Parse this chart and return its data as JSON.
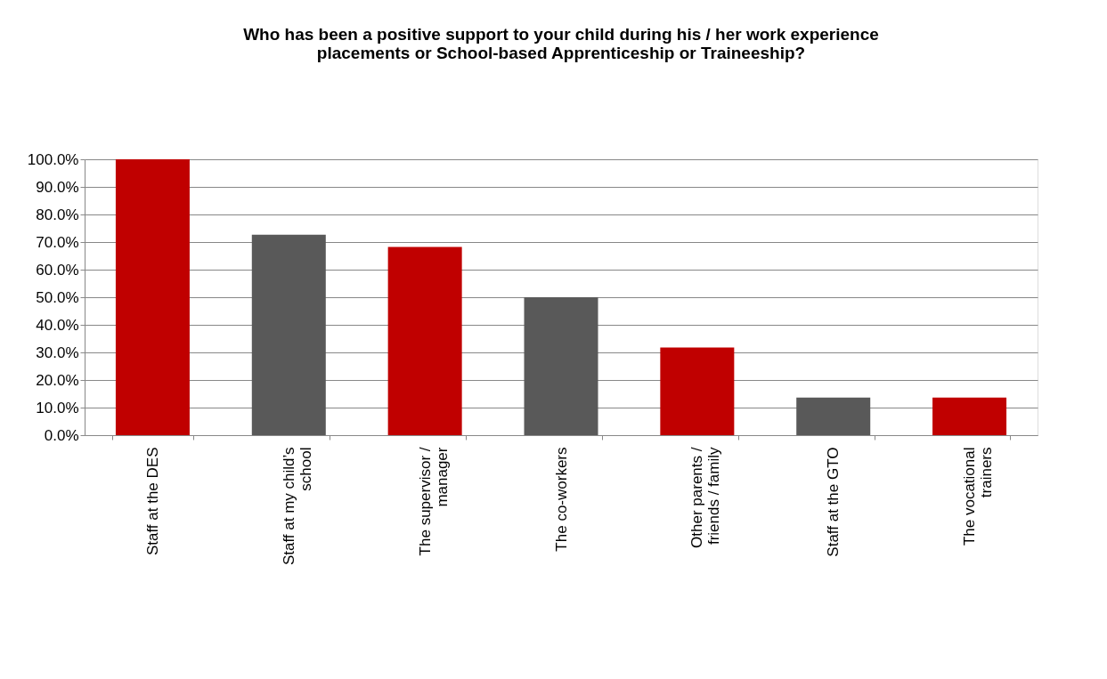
{
  "chart_data": {
    "type": "bar",
    "title": "Who has been a positive support to your child during his / her work experience placements or School-based Apprenticeship or Traineeship?",
    "categories": [
      "Staff at the DES",
      "Staff at my child’s school",
      "The supervisor / manager",
      "The co-workers",
      "Other parents / friends / family",
      "Staff at the GTO",
      "The vocational trainers"
    ],
    "values": [
      100,
      72.7,
      68.2,
      50,
      31.8,
      13.6,
      13.6
    ],
    "colors": [
      "#c00000",
      "#595959",
      "#c00000",
      "#595959",
      "#c00000",
      "#595959",
      "#c00000"
    ],
    "ylim": [
      0,
      100
    ],
    "yticks": [
      {
        "value": 0,
        "label": "0.0%"
      },
      {
        "value": 10,
        "label": "10.0%"
      },
      {
        "value": 20,
        "label": "20.0%"
      },
      {
        "value": 30,
        "label": "30.0%"
      },
      {
        "value": 40,
        "label": "40.0%"
      },
      {
        "value": 50,
        "label": "50.0%"
      },
      {
        "value": 60,
        "label": "60.0%"
      },
      {
        "value": 70,
        "label": "70.0%"
      },
      {
        "value": 80,
        "label": "80.0%"
      },
      {
        "value": 90,
        "label": "90.0%"
      },
      {
        "value": 100,
        "label": "100.0%"
      }
    ],
    "grid": "y"
  }
}
